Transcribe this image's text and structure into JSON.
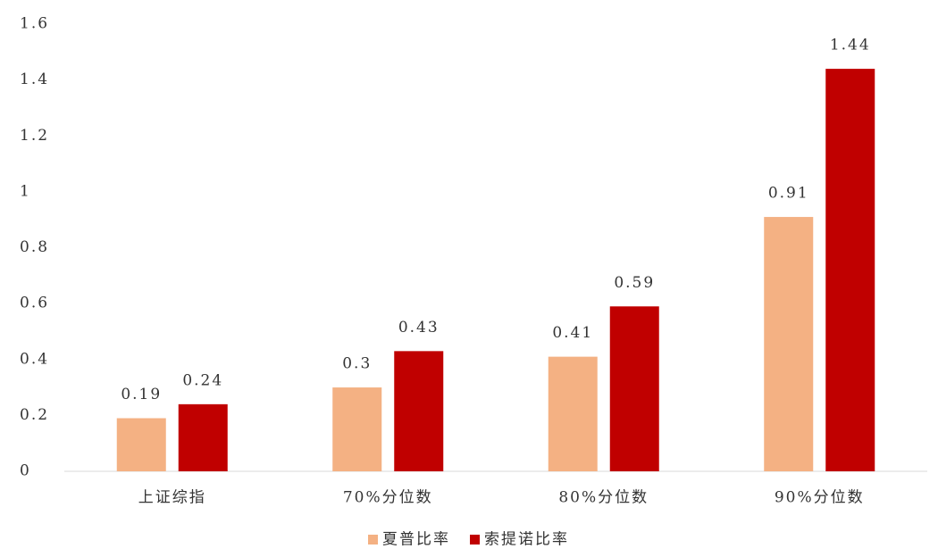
{
  "chart_data": {
    "type": "bar",
    "categories": [
      "上证综指",
      "70%分位数",
      "80%分位数",
      "90%分位数"
    ],
    "series": [
      {
        "name": "夏普比率",
        "color": "#f4b183",
        "values": [
          0.19,
          0.3,
          0.41,
          0.91
        ]
      },
      {
        "name": "索提诺比率",
        "color": "#c00000",
        "values": [
          0.24,
          0.43,
          0.59,
          1.44
        ]
      }
    ],
    "ylim": [
      0,
      1.6
    ],
    "yticks": [
      0,
      0.2,
      0.4,
      0.6,
      0.8,
      1,
      1.2,
      1.4,
      1.6
    ],
    "grid": false,
    "legend": "bottom"
  }
}
